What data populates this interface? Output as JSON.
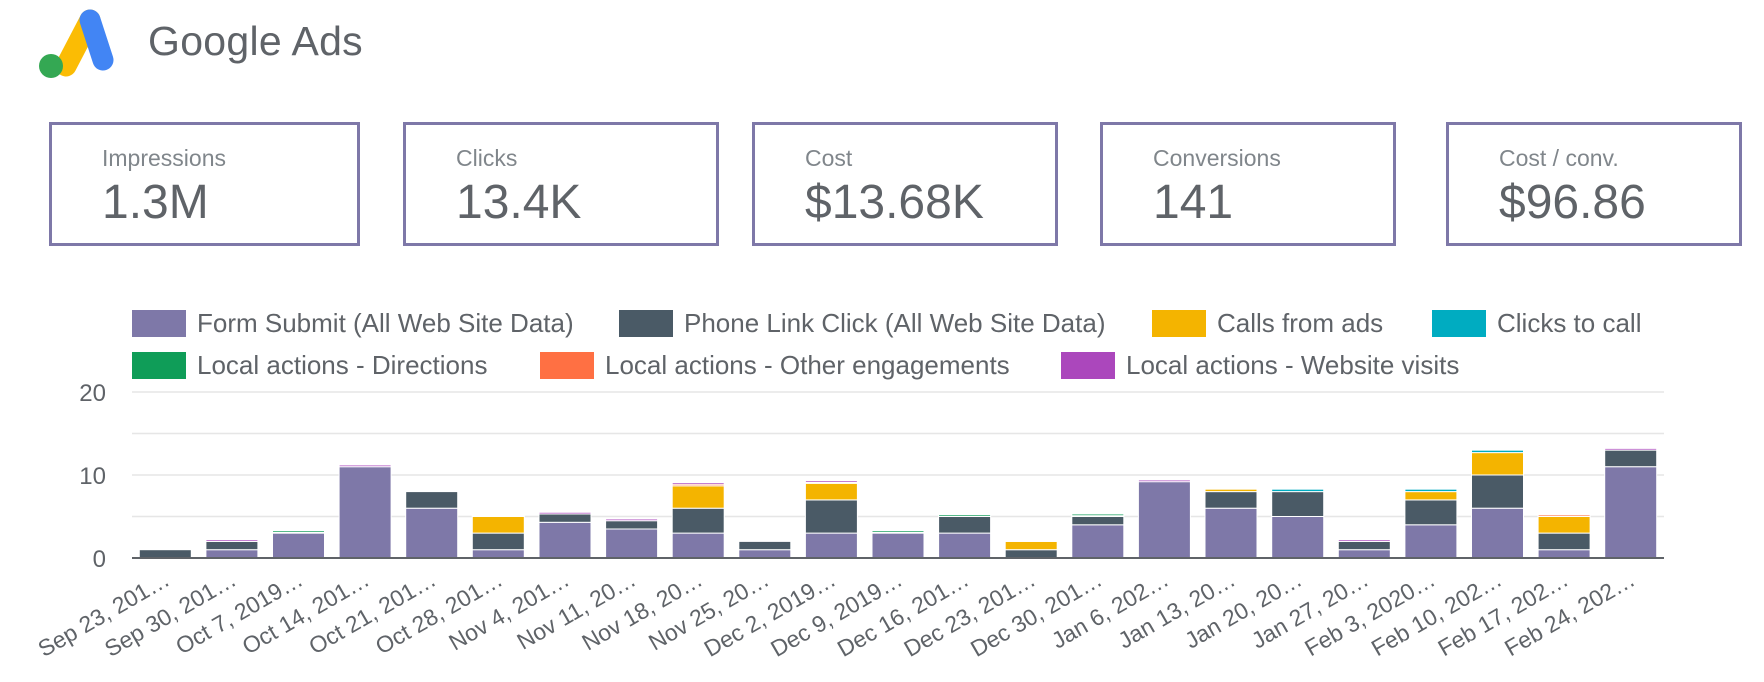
{
  "header": {
    "brand": "Google Ads",
    "logo_icon": "google-ads-logo"
  },
  "kpis": [
    {
      "label": "Impressions",
      "value": "1.3M"
    },
    {
      "label": "Clicks",
      "value": "13.4K"
    },
    {
      "label": "Cost",
      "value": "$13.68K"
    },
    {
      "label": "Conversions",
      "value": "141"
    },
    {
      "label": "Cost / conv.",
      "value": "$96.86"
    }
  ],
  "chart_data": {
    "type": "bar",
    "stacked": true,
    "legend_position": "top",
    "grid": true,
    "ylim": [
      0,
      20
    ],
    "yticks": [
      0,
      10,
      20
    ],
    "categories": [
      "Sep 23, 201…",
      "Sep 30, 201…",
      "Oct 7, 2019…",
      "Oct 14, 201…",
      "Oct 21, 201…",
      "Oct 28, 201…",
      "Nov 4, 201…",
      "Nov 11, 20…",
      "Nov 18, 20…",
      "Nov 25, 20…",
      "Dec 2, 2019…",
      "Dec 9, 2019…",
      "Dec 16, 201…",
      "Dec 23, 201…",
      "Dec 30, 201…",
      "Jan 6, 202…",
      "Jan 13, 20…",
      "Jan 20, 20…",
      "Jan 27, 20…",
      "Feb 3, 2020…",
      "Feb 10, 202…",
      "Feb 17, 202…",
      "Feb 24, 202…"
    ],
    "series": [
      {
        "name": "Form Submit (All Web Site Data)",
        "color": "#7e78a8",
        "values": [
          0,
          1,
          3,
          11,
          6,
          1,
          4.3,
          3.5,
          3,
          1,
          3,
          3,
          3,
          0,
          4,
          9.2,
          6,
          5,
          1,
          4,
          6,
          1,
          11
        ]
      },
      {
        "name": "Phone Link Click (All Web Site Data)",
        "color": "#4a5a66",
        "values": [
          1,
          1,
          0,
          0,
          2,
          2,
          1,
          1,
          3,
          1,
          4,
          0,
          2,
          1,
          1,
          0,
          2,
          3,
          1,
          3,
          4,
          2,
          2
        ]
      },
      {
        "name": "Calls from ads",
        "color": "#f4b400",
        "values": [
          0,
          0,
          0,
          0,
          0,
          2,
          0,
          0,
          2.7,
          0,
          2,
          0,
          0,
          1,
          0,
          0,
          0.3,
          0,
          0,
          1,
          2.7,
          2,
          0
        ]
      },
      {
        "name": "Clicks to call",
        "color": "#00acc1",
        "values": [
          0,
          0,
          0.1,
          0,
          0,
          0,
          0,
          0,
          0,
          0,
          0,
          0.1,
          0,
          0,
          0.1,
          0,
          0,
          0.3,
          0,
          0.3,
          0.3,
          0,
          0
        ]
      },
      {
        "name": "Local actions - Directions",
        "color": "#0f9d58",
        "values": [
          0,
          0,
          0.2,
          0,
          0,
          0,
          0,
          0,
          0,
          0,
          0,
          0.2,
          0.2,
          0,
          0.2,
          0,
          0,
          0.1,
          0,
          0.1,
          0.1,
          0,
          0
        ]
      },
      {
        "name": "Local actions - Other engagements",
        "color": "#ff7043",
        "values": [
          0,
          0,
          0,
          0,
          0,
          0.1,
          0,
          0,
          0.2,
          0,
          0.1,
          0,
          0,
          0.1,
          0,
          0,
          0.1,
          0,
          0,
          0,
          0.1,
          0.2,
          0
        ]
      },
      {
        "name": "Local actions - Website visits",
        "color": "#ab47bc",
        "values": [
          0,
          0.2,
          0,
          0.2,
          0,
          0,
          0.2,
          0.2,
          0.2,
          0,
          0.2,
          0,
          0,
          0,
          0,
          0.2,
          0,
          0,
          0.2,
          0,
          0,
          0.1,
          0.2
        ]
      }
    ]
  }
}
